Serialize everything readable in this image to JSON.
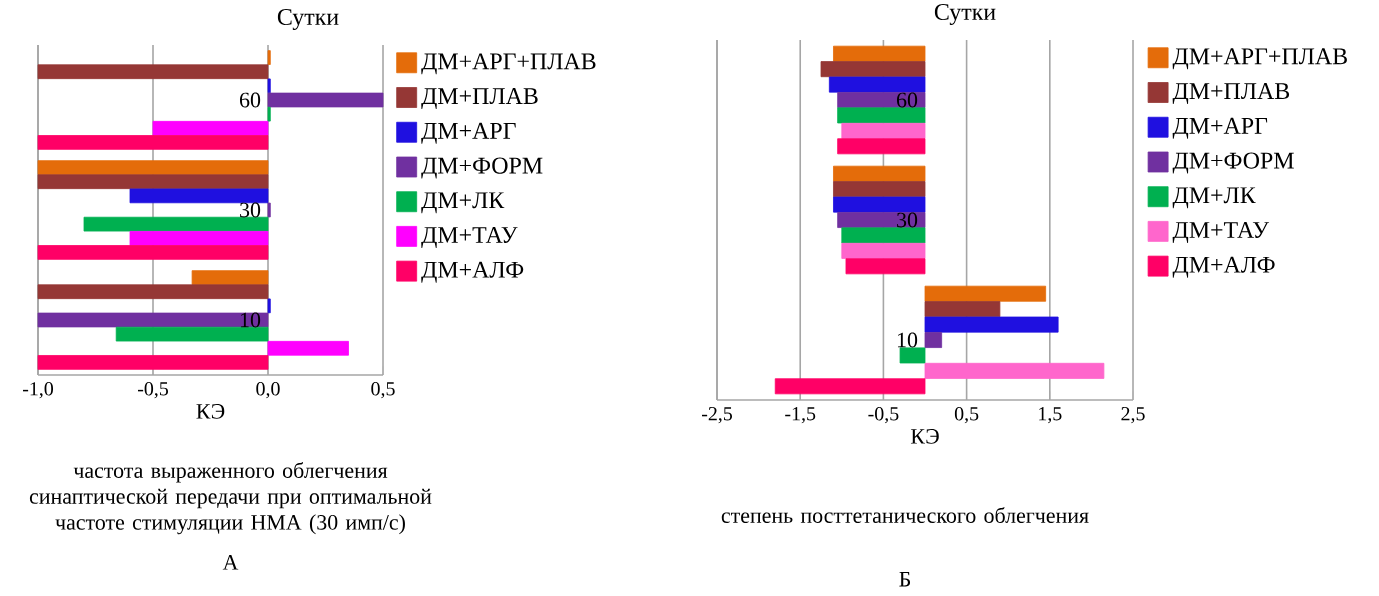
{
  "chart_data": [
    {
      "type": "bar",
      "orientation": "horizontal",
      "ylabel": "Сутки",
      "xlabel": "КЭ",
      "categories": [
        "60",
        "30",
        "10"
      ],
      "xlim": [
        -1.0,
        0.5
      ],
      "xticks": [
        {
          "value": -1.0,
          "label": "-1,0"
        },
        {
          "value": -0.5,
          "label": "-0,5"
        },
        {
          "value": 0.0,
          "label": "0,0"
        },
        {
          "value": 0.5,
          "label": "0,5"
        }
      ],
      "grid": "x",
      "legend": "right",
      "series": [
        {
          "name": "ДМ+АРГ+ПЛАВ",
          "color": "#e46c0a",
          "values": [
            0.01,
            -1.0,
            -0.33
          ]
        },
        {
          "name": "ДМ+ПЛАВ",
          "color": "#953735",
          "values": [
            -1.0,
            -1.0,
            -1.0
          ]
        },
        {
          "name": "ДМ+АРГ",
          "color": "#1f10e0",
          "values": [
            0.01,
            -0.6,
            0.01
          ]
        },
        {
          "name": "ДМ+ФОРМ",
          "color": "#7030a0",
          "values": [
            0.5,
            0.01,
            -1.0
          ]
        },
        {
          "name": "ДМ+ЛК",
          "color": "#00b050",
          "values": [
            0.01,
            -0.8,
            -0.66
          ]
        },
        {
          "name": "ДМ+ТАУ",
          "color": "#ff00ff",
          "values": [
            -0.5,
            -0.6,
            0.35
          ]
        },
        {
          "name": "ДМ+АЛФ",
          "color": "#ff0066",
          "values": [
            -1.0,
            -1.0,
            -1.0
          ]
        }
      ],
      "annotations": [
        "частота выраженного облегчения синаптической передачи при оптимальной частоте стимуляции НМА (30 имп/с)",
        "А"
      ]
    },
    {
      "type": "bar",
      "orientation": "horizontal",
      "ylabel": "Сутки",
      "xlabel": "КЭ",
      "categories": [
        "60",
        "30",
        "10"
      ],
      "xlim": [
        -2.5,
        2.5
      ],
      "xticks": [
        {
          "value": -2.5,
          "label": "-2,5"
        },
        {
          "value": -1.5,
          "label": "-1,5"
        },
        {
          "value": -0.5,
          "label": "-0,5"
        },
        {
          "value": 0.5,
          "label": "0,5"
        },
        {
          "value": 1.5,
          "label": "1,5"
        },
        {
          "value": 2.5,
          "label": "2,5"
        }
      ],
      "grid": "x",
      "legend": "right",
      "series": [
        {
          "name": "ДМ+АРГ+ПЛАВ",
          "color": "#e46c0a",
          "values": [
            -1.1,
            -1.1,
            1.45
          ]
        },
        {
          "name": "ДМ+ПЛАВ",
          "color": "#953735",
          "values": [
            -1.25,
            -1.1,
            0.9
          ]
        },
        {
          "name": "ДМ+АРГ",
          "color": "#1f10e0",
          "values": [
            -1.15,
            -1.1,
            1.6
          ]
        },
        {
          "name": "ДМ+ФОРМ",
          "color": "#7030a0",
          "values": [
            -1.05,
            -1.05,
            0.2
          ]
        },
        {
          "name": "ДМ+ЛК",
          "color": "#00b050",
          "values": [
            -1.05,
            -1.0,
            -0.3
          ]
        },
        {
          "name": "ДМ+ТАУ",
          "color": "#ff66cc",
          "values": [
            -1.0,
            -1.0,
            2.15
          ]
        },
        {
          "name": "ДМ+АЛФ",
          "color": "#ff0066",
          "values": [
            -1.05,
            -0.95,
            -1.8
          ]
        }
      ],
      "annotations": [
        "степень посттетанического облегчения",
        "Б"
      ]
    }
  ]
}
